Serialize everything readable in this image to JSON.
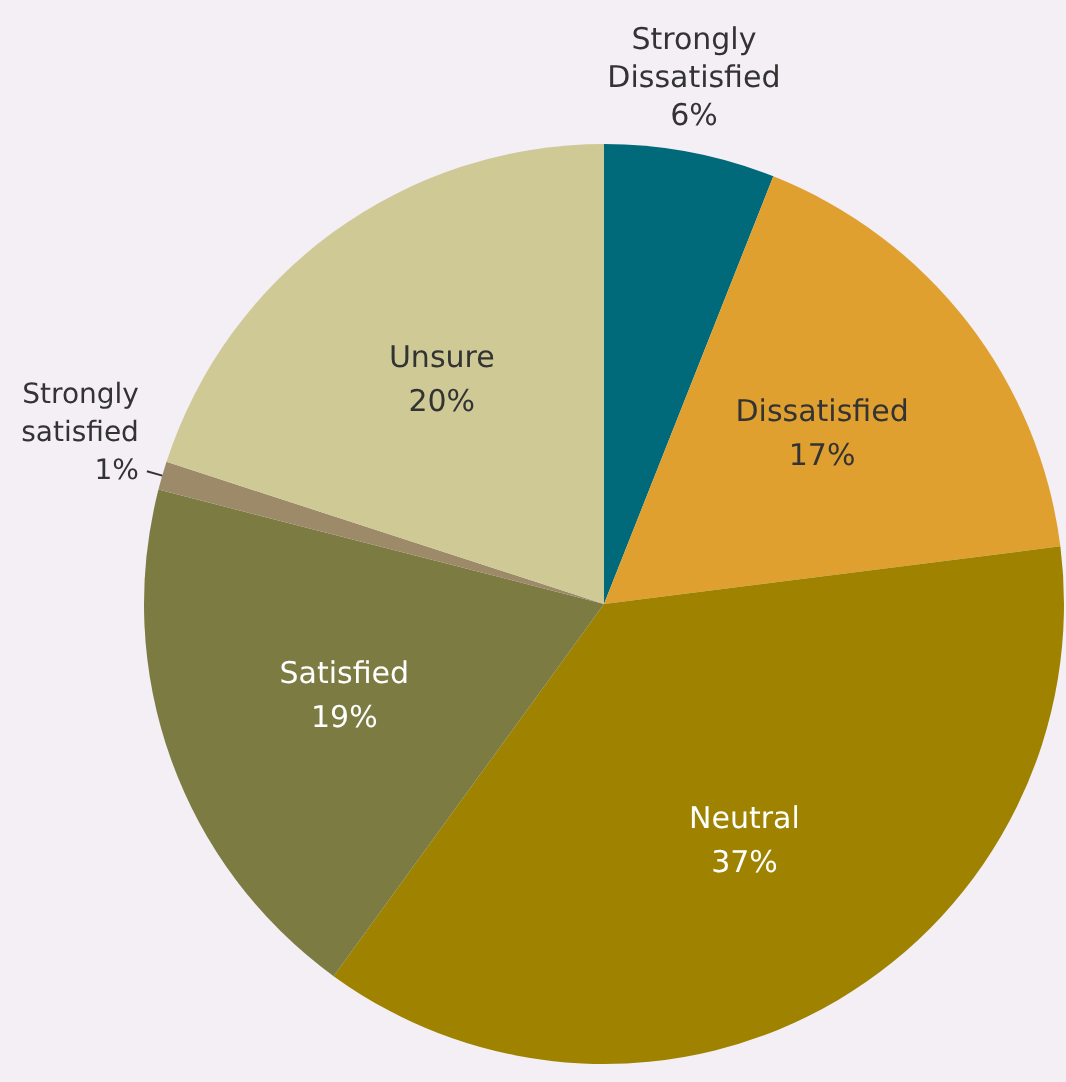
{
  "chart_data": {
    "type": "pie",
    "categories": [
      "Strongly Dissatisfied",
      "Dissatisfied",
      "Neutral",
      "Satisfied",
      "Strongly satisfied",
      "Unsure"
    ],
    "values": [
      6,
      17,
      37,
      19,
      1,
      20
    ],
    "value_labels": [
      "6%",
      "17%",
      "37%",
      "19%",
      "1%",
      "20%"
    ],
    "colors": [
      "#00697a",
      "#e0a030",
      "#9e8200",
      "#7b7b42",
      "#9c8a68",
      "#cfc996"
    ],
    "legend": false
  }
}
